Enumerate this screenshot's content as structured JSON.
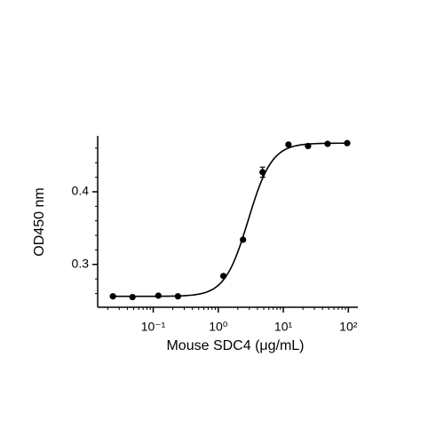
{
  "chart_data": {
    "type": "scatter",
    "x_label": "Mouse SDC4 (μg/mL)",
    "y_label": "OD450 nm",
    "x": [
      0.024,
      0.048,
      0.12,
      0.24,
      1.2,
      2.4,
      4.8,
      12,
      24,
      48,
      96
    ],
    "values": [
      0.256,
      0.255,
      0.257,
      0.256,
      0.284,
      0.334,
      0.427,
      0.465,
      0.463,
      0.466,
      0.467
    ],
    "errors": [
      null,
      null,
      null,
      null,
      null,
      null,
      0.007,
      null,
      null,
      null,
      null
    ],
    "color": "#000000",
    "fit": {
      "bottom": 0.256,
      "top": 0.467,
      "ec50": 2.9,
      "hill": 2.4
    },
    "xlog": true,
    "xlim": [
      0.014,
      140
    ],
    "xticks": [
      {
        "value": 0.1,
        "label": "10⁻¹"
      },
      {
        "value": 1,
        "label": "10⁰"
      },
      {
        "value": 10,
        "label": "10¹"
      },
      {
        "value": 100,
        "label": "10²"
      }
    ],
    "xminorticks": [
      0.02,
      0.03,
      0.04,
      0.05,
      0.06,
      0.07,
      0.08,
      0.09,
      0.2,
      0.3,
      0.4,
      0.5,
      0.6,
      0.7,
      0.8,
      0.9,
      2,
      3,
      4,
      5,
      6,
      7,
      8,
      9,
      20,
      30,
      40,
      50,
      60,
      70,
      80,
      90
    ],
    "ylim": [
      0.241,
      0.477
    ],
    "yticks": [
      0.3,
      0.4
    ],
    "yminorticks": [
      0.26,
      0.28,
      0.32,
      0.34,
      0.36,
      0.38,
      0.42,
      0.44,
      0.46
    ]
  }
}
